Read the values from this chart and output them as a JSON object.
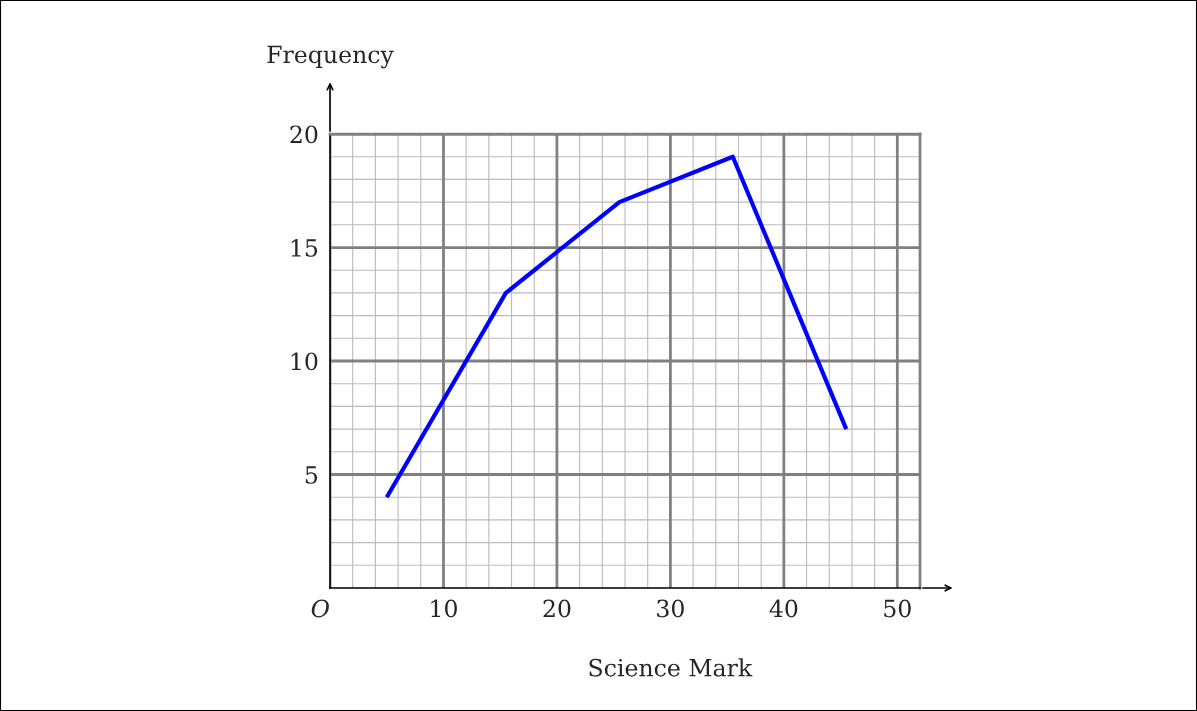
{
  "chart_data": {
    "type": "line",
    "xlabel": "Science Mark",
    "ylabel": "Frequency",
    "x": [
      5,
      15.5,
      25.5,
      35.5,
      45.5
    ],
    "series": [
      {
        "color": "#0000ff",
        "values": [
          4,
          13,
          17,
          19,
          7
        ]
      }
    ],
    "xlim": [
      0,
      52
    ],
    "ylim": [
      0,
      20
    ],
    "xticks": [
      {
        "value": 0,
        "label": "O"
      },
      10,
      20,
      30,
      40,
      50
    ],
    "yticks": [
      5,
      10,
      15,
      20
    ],
    "grid": true,
    "marker": "none",
    "line_style": "solid"
  }
}
